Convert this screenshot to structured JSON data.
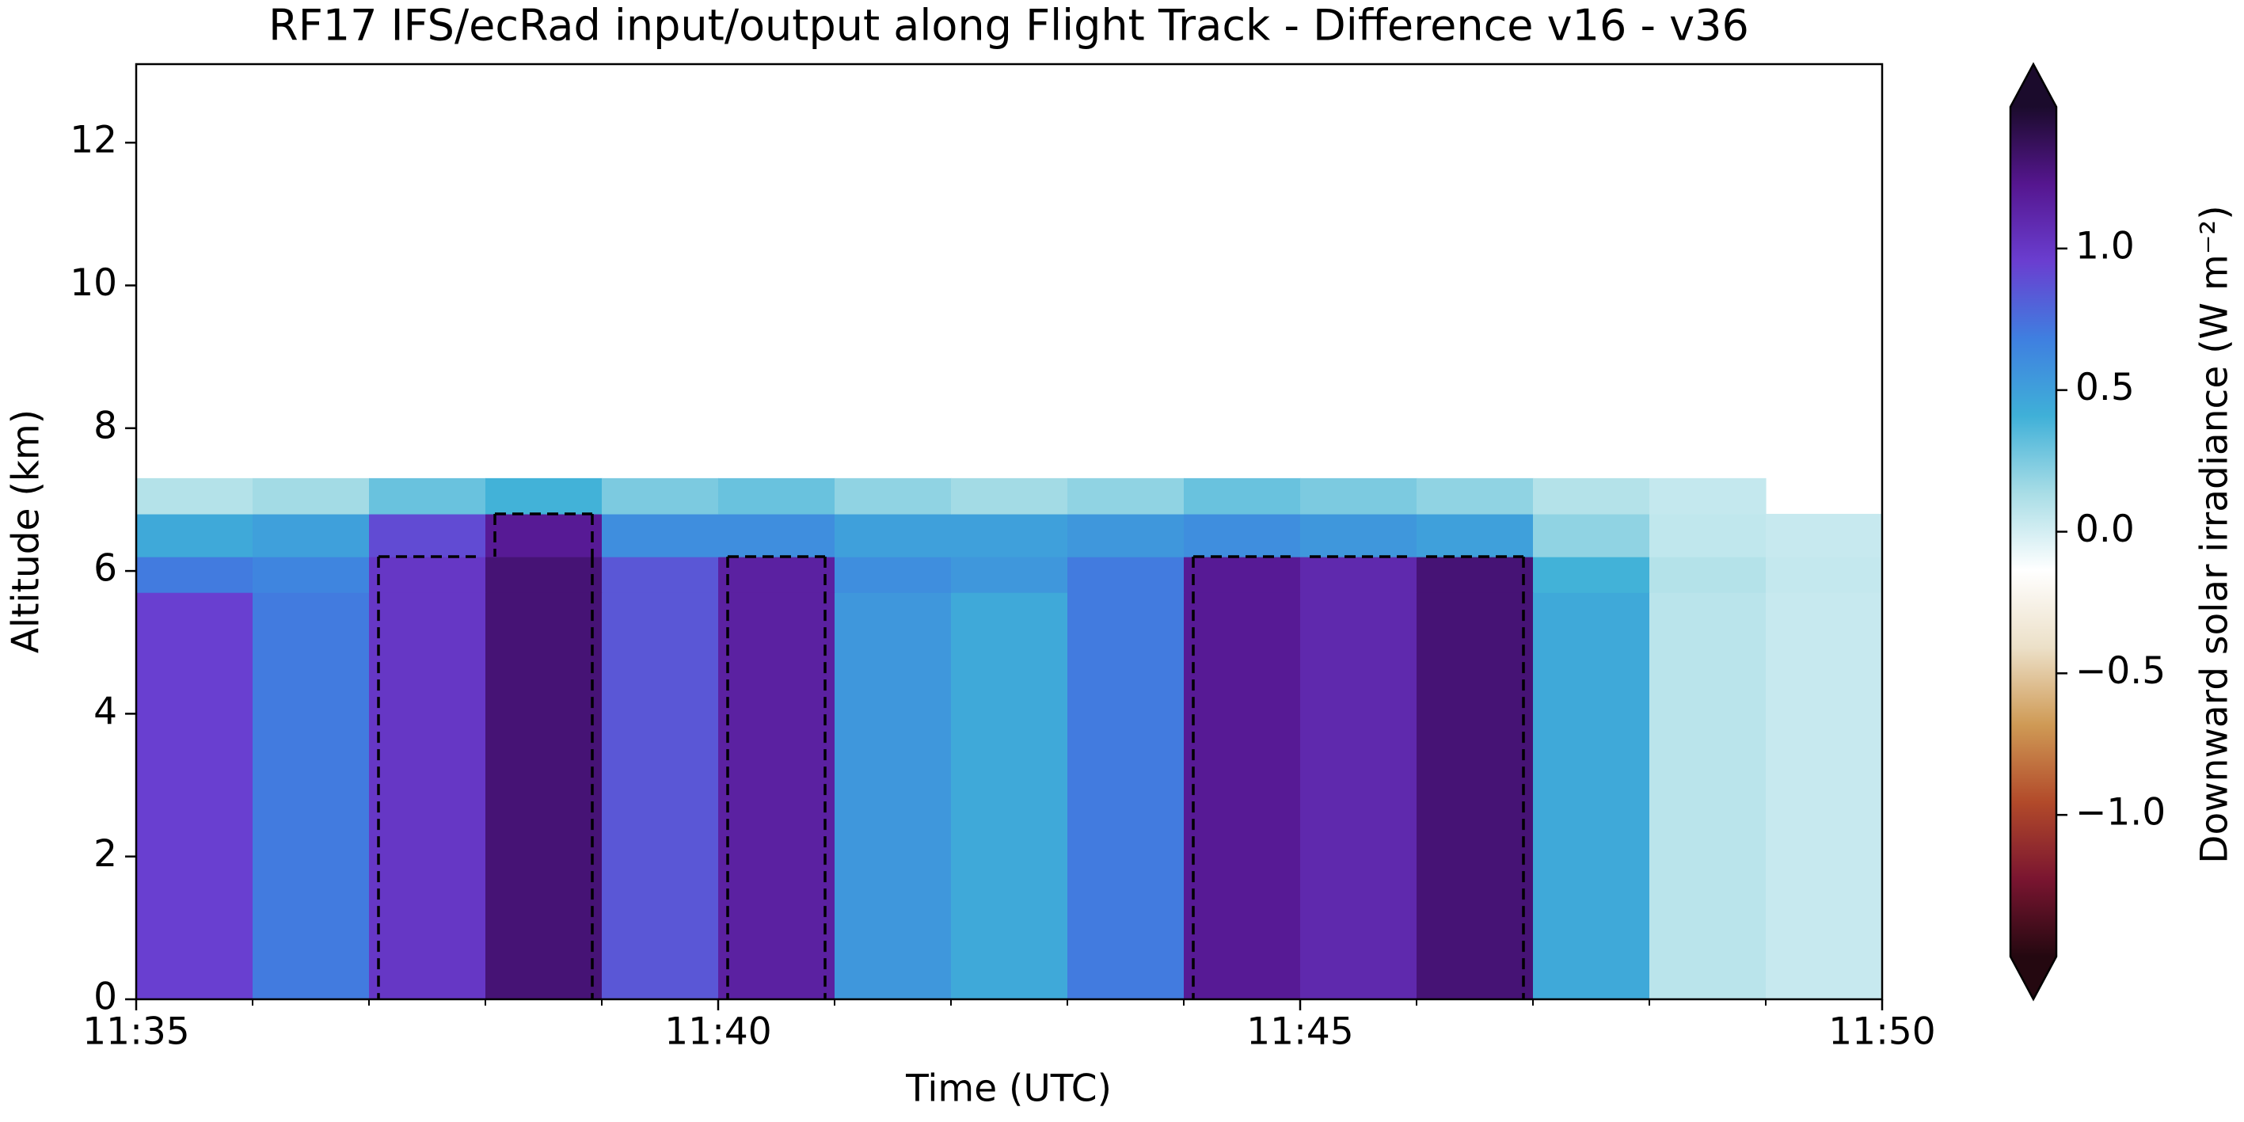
{
  "chart_data": {
    "type": "heatmap",
    "title": "RF17 IFS/ecRad input/output along Flight Track - Difference v16 - v36",
    "xlabel": "Time (UTC)",
    "ylabel": "Altitude (km)",
    "colorbar_label": "Downward solar irradiance (W m⁻²)",
    "x": [
      "11:35",
      "11:36",
      "11:37",
      "11:38",
      "11:39",
      "11:40",
      "11:41",
      "11:42",
      "11:43",
      "11:44",
      "11:45",
      "11:46",
      "11:47",
      "11:48",
      "11:49",
      "11:50"
    ],
    "y": [
      0,
      5.7,
      6.2,
      6.8,
      7.3
    ],
    "z": [
      [
        0.95,
        0.7,
        1.0,
        1.3,
        0.85,
        1.15,
        0.55,
        0.45,
        0.7,
        1.2,
        1.1,
        1.3,
        0.45,
        0.08,
        0.04
      ],
      [
        0.7,
        0.65,
        1.0,
        1.3,
        0.85,
        1.15,
        0.6,
        0.55,
        0.7,
        1.2,
        1.1,
        1.3,
        0.4,
        0.1,
        0.05
      ],
      [
        0.45,
        0.5,
        0.9,
        1.2,
        0.6,
        0.6,
        0.5,
        0.5,
        0.55,
        0.6,
        0.55,
        0.5,
        0.2,
        0.06,
        0.04
      ],
      [
        0.1,
        0.15,
        0.3,
        0.4,
        0.25,
        0.3,
        0.2,
        0.15,
        0.2,
        0.3,
        0.25,
        0.2,
        0.1,
        0.05,
        null
      ]
    ],
    "contour_level": 1,
    "xlim": [
      "11:35",
      "11:50"
    ],
    "xticks": [
      "11:35",
      "11:40",
      "11:45",
      "11:50"
    ],
    "xminorticks": [
      "11:36",
      "11:37",
      "11:38",
      "11:39",
      "11:41",
      "11:42",
      "11:43",
      "11:44",
      "11:46",
      "11:47",
      "11:48",
      "11:49"
    ],
    "ylim": [
      0,
      13.1
    ],
    "yticks": [
      0,
      2,
      4,
      6,
      8,
      10,
      12
    ],
    "clim": [
      -1.5,
      1.5
    ],
    "cticks": [
      {
        "value": -1.0,
        "label": "−1.0"
      },
      {
        "value": -0.5,
        "label": "−0.5"
      },
      {
        "value": 0.0,
        "label": "0.0"
      },
      {
        "value": 0.5,
        "label": "0.5"
      },
      {
        "value": 1.0,
        "label": "1.0"
      }
    ],
    "colormap": [
      "#240810",
      "#7a1530",
      "#b24a2a",
      "#cf9a55",
      "#ece0c8",
      "#ffffff",
      "#a8dde6",
      "#3fb0d8",
      "#3f7fe0",
      "#6a3ed0",
      "#55168f",
      "#1b0b2c"
    ]
  }
}
